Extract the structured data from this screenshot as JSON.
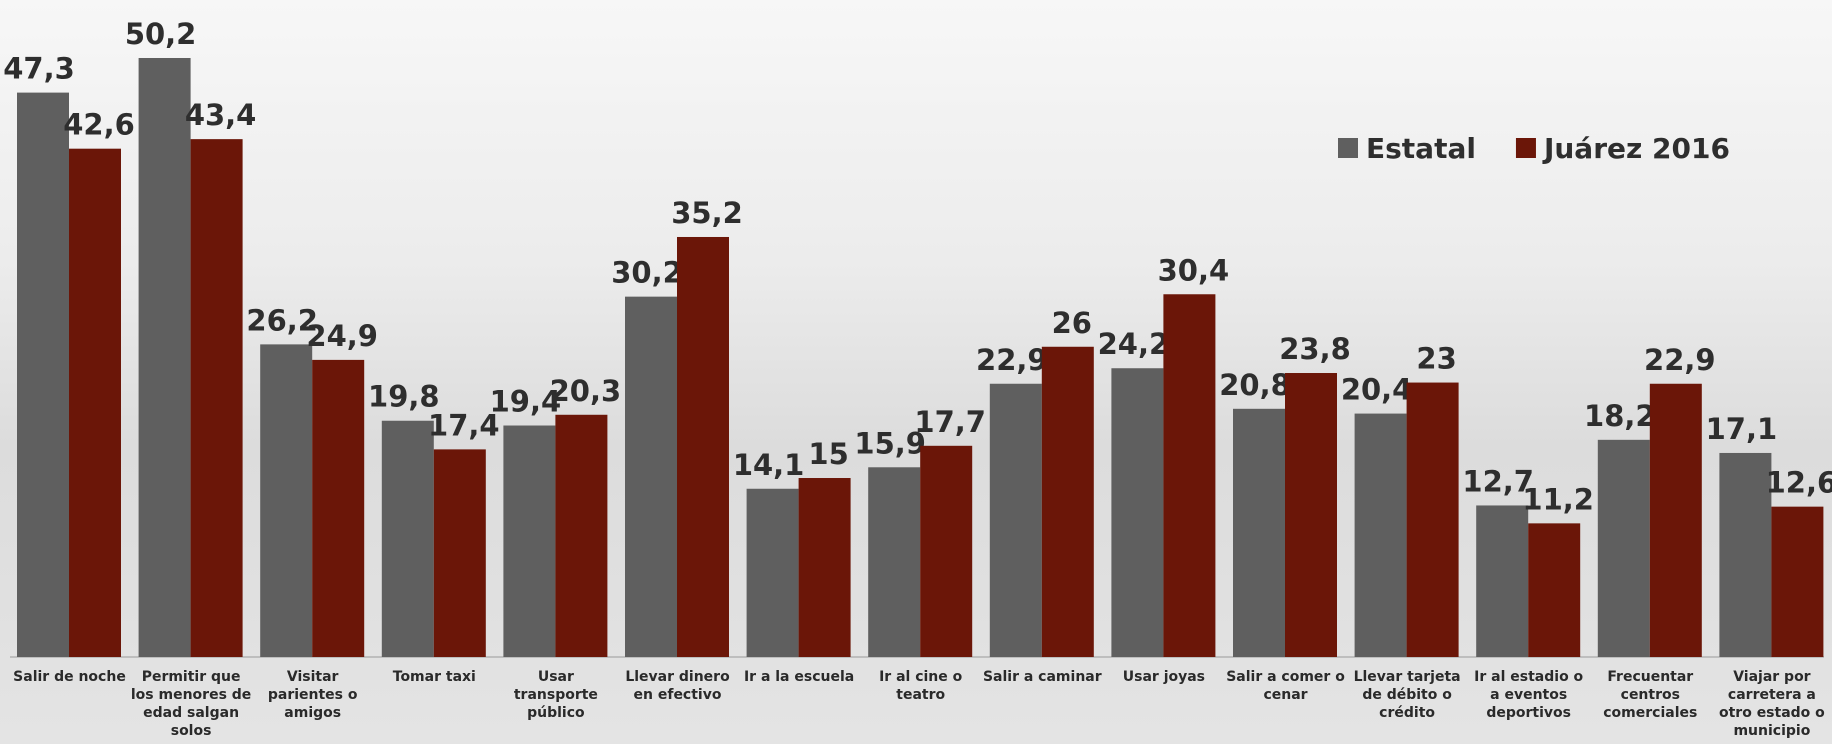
{
  "chart_data": {
    "type": "bar",
    "categories": [
      "Salir de noche",
      "Permitir que los menores de edad salgan solos",
      "Visitar parientes o amigos",
      "Tomar taxi",
      "Usar transporte público",
      "Llevar dinero en efectivo",
      "Ir a la escuela",
      "Ir al cine o teatro",
      "Salir a caminar",
      "Usar joyas",
      "Salir a comer o cenar",
      "Llevar tarjeta de débito o crédito",
      "Ir al estadio o a eventos deportivos",
      "Frecuentar centros comerciales",
      "Viajar por carretera a otro estado o municipio"
    ],
    "series": [
      {
        "name": "Estatal",
        "color": "#5f5f5f",
        "values": [
          47.3,
          50.2,
          26.2,
          19.8,
          19.4,
          30.2,
          14.1,
          15.9,
          22.9,
          24.2,
          20.8,
          20.4,
          12.7,
          18.2,
          17.1
        ],
        "value_labels": [
          "47,3",
          "50,2",
          "26,2",
          "19,8",
          "19,4",
          "30,2",
          "14,1",
          "15,9",
          "22,9",
          "24,2",
          "20,8",
          "20,4",
          "12,7",
          "18,2",
          "17,1"
        ]
      },
      {
        "name": "Juárez 2016",
        "color": "#6b1608",
        "values": [
          42.6,
          43.4,
          24.9,
          17.4,
          20.3,
          35.2,
          15,
          17.7,
          26,
          30.4,
          23.8,
          23,
          11.2,
          22.9,
          12.6
        ],
        "value_labels": [
          "42,6",
          "43,4",
          "24,9",
          "17,4",
          "20,3",
          "35,2",
          "15",
          "17,7",
          "26",
          "30,4",
          "23,8",
          "23",
          "11,2",
          "22,9",
          "12,6"
        ]
      }
    ],
    "legend": "top-right"
  }
}
